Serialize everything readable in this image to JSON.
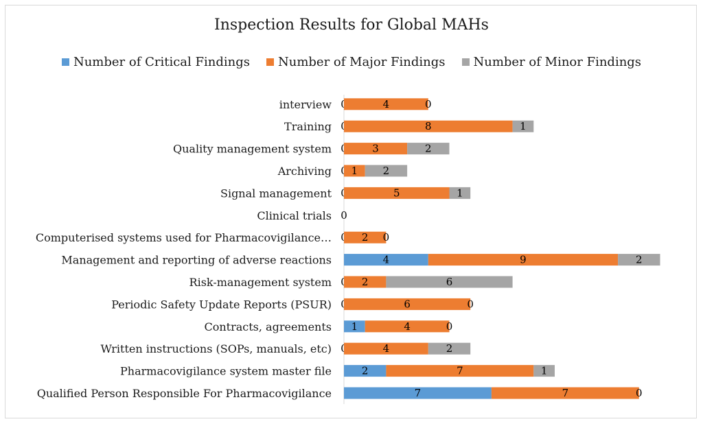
{
  "chart_data": {
    "type": "bar",
    "orientation": "horizontal",
    "stacked": true,
    "title": "Inspection Results for Global MAHs",
    "legend_position": "top",
    "categories": [
      "Qualified Person Responsible For Pharmacovigilance",
      "Pharmacovigilance system master file",
      "Written instructions (SOPs, manuals, etc)",
      "Contracts, agreements",
      "Periodic Safety Update Reports (PSUR)",
      "Risk-management system",
      "Management and reporting of adverse reactions",
      "Computerised systems used for Pharmacovigilance…",
      "Clinical trials",
      "Signal management",
      "Archiving",
      "Quality management system",
      "Training",
      "interview"
    ],
    "series": [
      {
        "name": "Number of Critical Findings",
        "color": "#5b9bd5",
        "values": [
          7,
          2,
          0,
          1,
          0,
          0,
          4,
          0,
          0,
          0,
          0,
          0,
          0,
          0
        ]
      },
      {
        "name": "Number of Major Findings",
        "color": "#ed7d31",
        "values": [
          7,
          7,
          4,
          4,
          6,
          2,
          9,
          2,
          null,
          5,
          1,
          3,
          8,
          4
        ]
      },
      {
        "name": "Number of Minor Findings",
        "color": "#a5a5a5",
        "values": [
          0,
          1,
          2,
          0,
          0,
          6,
          2,
          0,
          null,
          1,
          2,
          2,
          1,
          0
        ]
      }
    ],
    "xlim": [
      0,
      15
    ],
    "grid": false
  }
}
